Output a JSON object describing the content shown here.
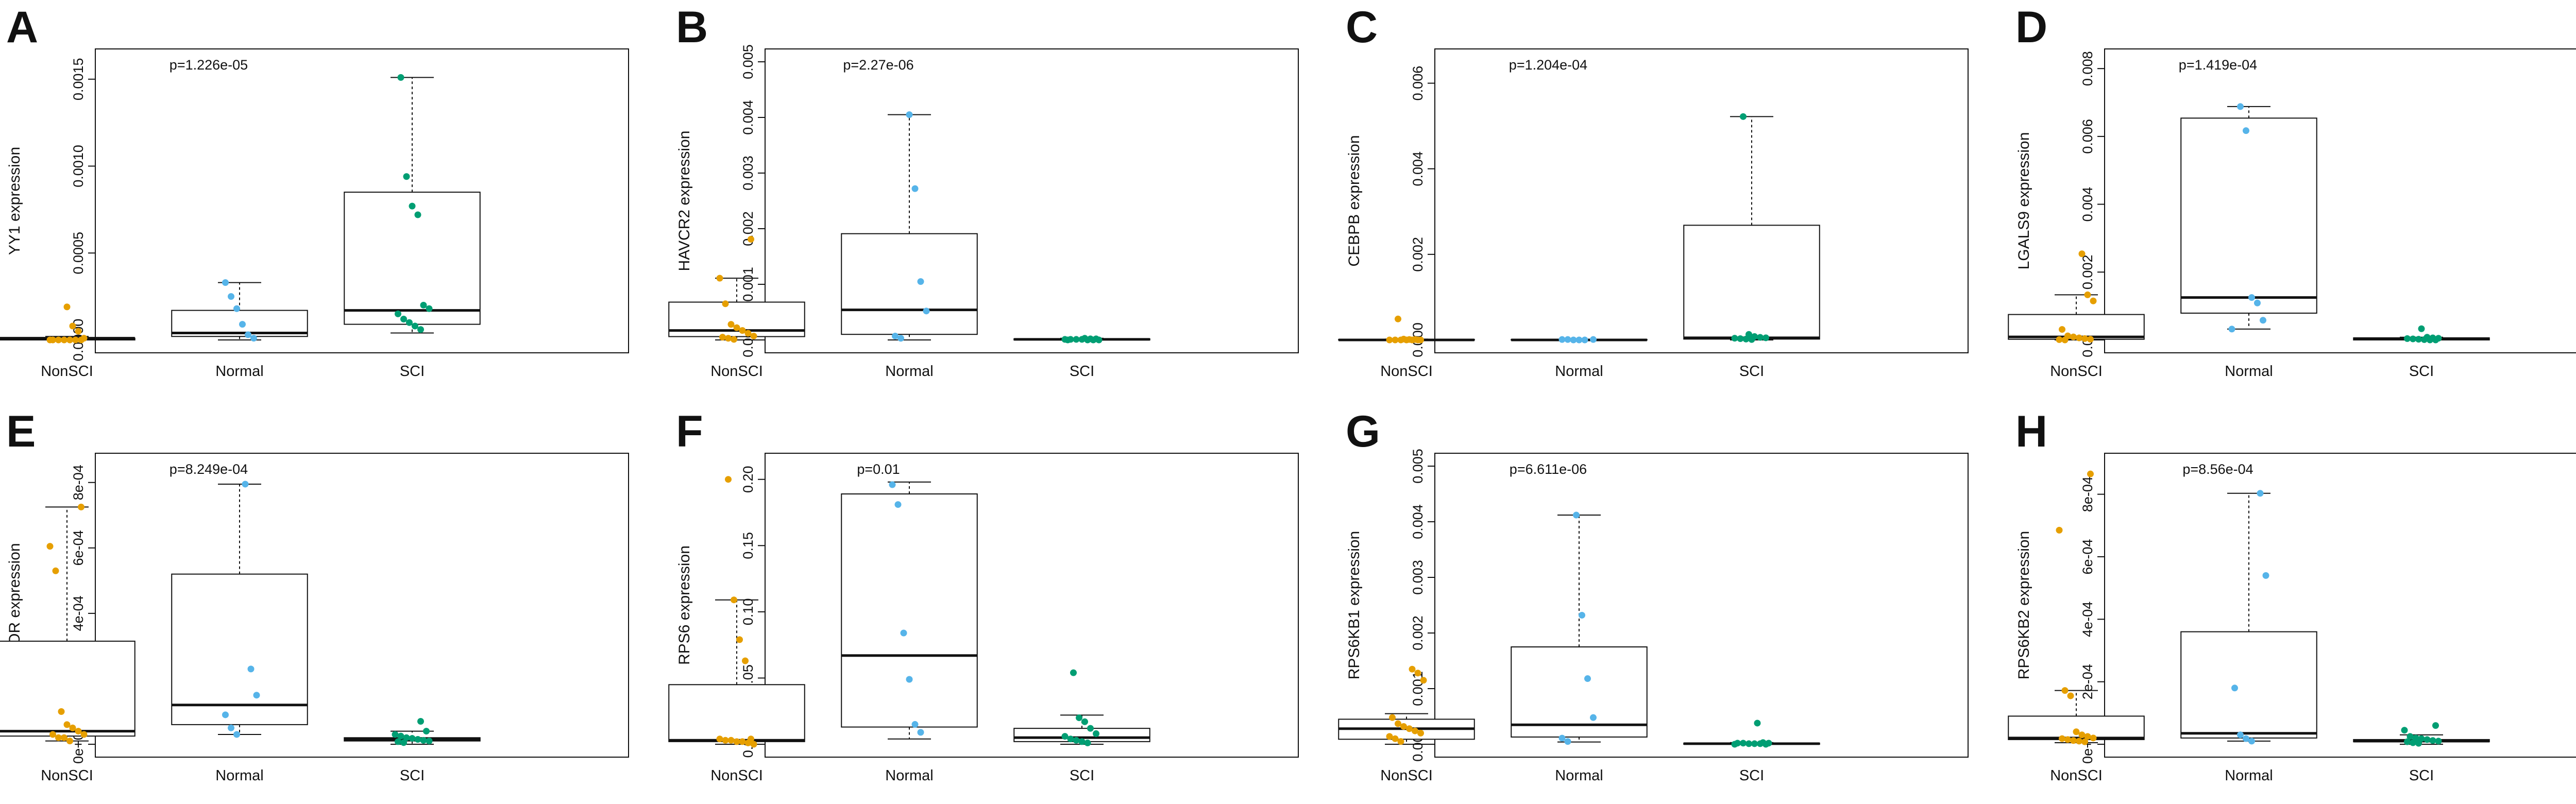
{
  "colors": {
    "NonSCI": "#E69F00",
    "Normal": "#56B4E9",
    "SCI": "#009E73",
    "axis": "#111111"
  },
  "chart_data": [
    {
      "letter": "A",
      "type": "boxplot",
      "ylabel": "YY1 expression",
      "pvalue": "p=1.226e-05",
      "ylim": [
        0,
        0.0016
      ],
      "ticks": [
        0,
        0.0005,
        0.001,
        0.0015
      ],
      "tick_labels": [
        "0.0000",
        "0.0005",
        "0.0010",
        "0.0015"
      ],
      "categories": [
        "NonSCI",
        "Normal",
        "SCI"
      ],
      "boxes": [
        {
          "q1": 0.0,
          "median": 1e-05,
          "q3": 1e-05,
          "wlow": 0.0,
          "whigh": 2e-05
        },
        {
          "q1": 2e-05,
          "median": 4e-05,
          "q3": 0.00017,
          "wlow": 0.0,
          "whigh": 0.00033
        },
        {
          "q1": 9e-05,
          "median": 0.00017,
          "q3": 0.00085,
          "wlow": 4e-05,
          "whigh": 0.00151
        }
      ],
      "points": [
        [
          0.0,
          0.0,
          0.0,
          0.0,
          0.0,
          0.0,
          0.0,
          1e-05,
          5e-05,
          8e-05,
          0.00019
        ],
        [
          1e-05,
          3e-05,
          9e-05,
          0.00018,
          0.00025,
          0.00033
        ],
        [
          6e-05,
          8e-05,
          0.0001,
          0.00012,
          0.00015,
          0.00018,
          0.0002,
          0.00072,
          0.00077,
          0.00094,
          0.00151
        ]
      ]
    },
    {
      "letter": "B",
      "type": "boxplot",
      "ylabel": "HAVCR2 expression",
      "pvalue": "p=2.27e-06",
      "ylim": [
        0,
        0.005
      ],
      "ticks": [
        0,
        0.001,
        0.002,
        0.003,
        0.004,
        0.005
      ],
      "tick_labels": [
        "0.000",
        "0.001",
        "0.002",
        "0.003",
        "0.004",
        "0.005"
      ],
      "categories": [
        "NonSCI",
        "Normal",
        "SCI"
      ],
      "boxes": [
        {
          "q1": 6e-05,
          "median": 0.00017,
          "q3": 0.00068,
          "wlow": 0.0,
          "whigh": 0.00111
        },
        {
          "q1": 0.0001,
          "median": 0.00054,
          "q3": 0.00191,
          "wlow": 0.0,
          "whigh": 0.00405
        },
        {
          "q1": 0.0,
          "median": 1e-05,
          "q3": 2e-05,
          "wlow": 0.0,
          "whigh": 3e-05
        }
      ],
      "points": [
        [
          1e-05,
          3e-05,
          5e-05,
          7e-05,
          0.00012,
          0.00017,
          0.00022,
          0.00028,
          0.00065,
          0.00111,
          0.00181
        ],
        [
          3e-05,
          7e-05,
          0.00052,
          0.00105,
          0.00272,
          0.00405
        ],
        [
          0.0,
          0.0,
          0.0,
          0.0,
          1e-05,
          1e-05,
          1e-05,
          1e-05,
          2e-05,
          2e-05,
          3e-05
        ]
      ]
    },
    {
      "letter": "C",
      "type": "boxplot",
      "ylabel": "CEBPB expression",
      "pvalue": "p=1.204e-04",
      "ylim": [
        0,
        0.0065
      ],
      "ticks": [
        0,
        0.002,
        0.004,
        0.006
      ],
      "tick_labels": [
        "0.000",
        "0.002",
        "0.004",
        "0.006"
      ],
      "categories": [
        "NonSCI",
        "Normal",
        "SCI"
      ],
      "boxes": [
        {
          "q1": 0.0,
          "median": 0.0,
          "q3": 1e-05,
          "wlow": 0.0,
          "whigh": 2e-05
        },
        {
          "q1": 0.0,
          "median": 0.0,
          "q3": 1e-05,
          "wlow": 0.0,
          "whigh": 1e-05
        },
        {
          "q1": 2e-05,
          "median": 5e-05,
          "q3": 0.00268,
          "wlow": 0.0,
          "whigh": 0.00522
        }
      ],
      "points": [
        [
          0.0,
          0.0,
          0.0,
          0.0,
          0.0,
          0.0,
          0.0,
          1e-05,
          1e-05,
          2e-05,
          0.00049
        ],
        [
          0.0,
          0.0,
          0.0,
          1e-05,
          1e-05,
          1e-05
        ],
        [
          1e-05,
          2e-05,
          3e-05,
          4e-05,
          5e-05,
          6e-05,
          8e-05,
          0.00013,
          0.00522
        ]
      ]
    },
    {
      "letter": "D",
      "type": "boxplot",
      "ylabel": "LGALS9 expression",
      "pvalue": "p=1.419e-04",
      "ylim": [
        0,
        0.0082
      ],
      "ticks": [
        0,
        0.002,
        0.004,
        0.006,
        0.008
      ],
      "tick_labels": [
        "0.000",
        "0.002",
        "0.004",
        "0.006",
        "0.008"
      ],
      "categories": [
        "NonSCI",
        "Normal",
        "SCI"
      ],
      "boxes": [
        {
          "q1": 2e-05,
          "median": 9e-05,
          "q3": 0.00075,
          "wlow": 0.0,
          "whigh": 0.00133
        },
        {
          "q1": 0.00079,
          "median": 0.00125,
          "q3": 0.00654,
          "wlow": 0.00032,
          "whigh": 0.00688
        },
        {
          "q1": 0.0,
          "median": 4e-05,
          "q3": 6e-05,
          "wlow": 0.0,
          "whigh": 8e-05
        }
      ],
      "points": [
        [
          0.0,
          1e-05,
          2e-05,
          4e-05,
          6e-05,
          9e-05,
          0.00012,
          0.00031,
          0.00115,
          0.00133,
          0.00254
        ],
        [
          0.00032,
          0.00058,
          0.00109,
          0.00125,
          0.00617,
          0.00688
        ],
        [
          0.0,
          0.0,
          1e-05,
          2e-05,
          3e-05,
          4e-05,
          5e-05,
          6e-05,
          8e-05,
          0.00033
        ]
      ]
    },
    {
      "letter": "E",
      "type": "boxplot",
      "ylabel": "MTOR expression",
      "pvalue": "p=8.249e-04",
      "ylim": [
        0,
        0.00085
      ],
      "ticks": [
        0,
        0.0002,
        0.0004,
        0.0006,
        0.0008
      ],
      "tick_labels": [
        "0e+00",
        "2e-04",
        "4e-04",
        "6e-04",
        "8e-04"
      ],
      "categories": [
        "NonSCI",
        "Normal",
        "SCI"
      ],
      "boxes": [
        {
          "q1": 2.5e-05,
          "median": 4e-05,
          "q3": 0.000315,
          "wlow": 1e-05,
          "whigh": 0.000725
        },
        {
          "q1": 6e-05,
          "median": 0.00012,
          "q3": 0.00052,
          "wlow": 3e-05,
          "whigh": 0.000795
        },
        {
          "q1": 1e-05,
          "median": 1.5e-05,
          "q3": 2e-05,
          "wlow": 0.0,
          "whigh": 4e-05
        }
      ],
      "points": [
        [
          1e-05,
          2e-05,
          2e-05,
          3e-05,
          3e-05,
          4e-05,
          5e-05,
          6e-05,
          0.0001,
          0.00053,
          0.000605,
          0.000725
        ],
        [
          3e-05,
          5e-05,
          9e-05,
          0.00015,
          0.00023,
          0.000795
        ],
        [
          5e-06,
          8e-06,
          1e-05,
          1.2e-05,
          1.5e-05,
          1.8e-05,
          2e-05,
          2.5e-05,
          3e-05,
          4e-05,
          7e-05
        ]
      ]
    },
    {
      "letter": "F",
      "type": "boxplot",
      "ylabel": "RPS6 expression",
      "pvalue": "p=0.01",
      "ylim": [
        0,
        0.21
      ],
      "ticks": [
        0,
        0.05,
        0.1,
        0.15,
        0.2
      ],
      "tick_labels": [
        "0.00",
        "0.05",
        "0.10",
        "0.15",
        "0.20"
      ],
      "categories": [
        "NonSCI",
        "Normal",
        "SCI"
      ],
      "boxes": [
        {
          "q1": 0.002,
          "median": 0.003,
          "q3": 0.045,
          "wlow": 0.0,
          "whigh": 0.109
        },
        {
          "q1": 0.013,
          "median": 0.067,
          "q3": 0.189,
          "wlow": 0.004,
          "whigh": 0.198
        },
        {
          "q1": 0.002,
          "median": 0.005,
          "q3": 0.012,
          "wlow": 0.0,
          "whigh": 0.022
        }
      ],
      "points": [
        [
          0.0,
          0.001,
          0.002,
          0.002,
          0.003,
          0.003,
          0.004,
          0.004,
          0.063,
          0.079,
          0.109,
          0.2
        ],
        [
          0.009,
          0.015,
          0.049,
          0.084,
          0.181,
          0.196
        ],
        [
          0.001,
          0.002,
          0.003,
          0.004,
          0.006,
          0.008,
          0.012,
          0.017,
          0.02,
          0.054
        ]
      ]
    },
    {
      "letter": "G",
      "type": "boxplot",
      "ylabel": "RPS6KB1 expression",
      "pvalue": "p=6.611e-06",
      "ylim": [
        0,
        0.005
      ],
      "ticks": [
        0,
        0.001,
        0.002,
        0.003,
        0.004,
        0.005
      ],
      "tick_labels": [
        "0.000",
        "0.001",
        "0.002",
        "0.003",
        "0.004",
        "0.005"
      ],
      "categories": [
        "NonSCI",
        "Normal",
        "SCI"
      ],
      "boxes": [
        {
          "q1": 9e-05,
          "median": 0.00028,
          "q3": 0.00045,
          "wlow": 0.0,
          "whigh": 0.00055
        },
        {
          "q1": 0.00013,
          "median": 0.00035,
          "q3": 0.00175,
          "wlow": 4e-05,
          "whigh": 0.00412
        },
        {
          "q1": 0.0,
          "median": 1e-05,
          "q3": 2e-05,
          "wlow": 0.0,
          "whigh": 3e-05
        }
      ],
      "points": [
        [
          5e-05,
          0.0001,
          0.00014,
          0.0002,
          0.00024,
          0.00028,
          0.00032,
          0.00037,
          0.00048,
          0.00115,
          0.00128,
          0.00135
        ],
        [
          5e-05,
          0.00011,
          0.00048,
          0.00118,
          0.00232,
          0.00412
        ],
        [
          0.0,
          0.0,
          1e-05,
          1e-05,
          1e-05,
          2e-05,
          2e-05,
          2e-05,
          3e-05,
          0.00038
        ]
      ]
    },
    {
      "letter": "H",
      "type": "boxplot",
      "ylabel": "RPS6KB2 expression",
      "pvalue": "p=8.56e-04",
      "ylim": [
        0,
        0.00089
      ],
      "ticks": [
        0,
        0.0002,
        0.0004,
        0.0006,
        0.0008
      ],
      "tick_labels": [
        "0e+00",
        "2e-04",
        "4e-04",
        "6e-04",
        "8e-04"
      ],
      "categories": [
        "NonSCI",
        "Normal",
        "SCI"
      ],
      "boxes": [
        {
          "q1": 1.5e-05,
          "median": 2e-05,
          "q3": 9e-05,
          "wlow": 5e-06,
          "whigh": 0.000172
        },
        {
          "q1": 2e-05,
          "median": 3.5e-05,
          "q3": 0.00036,
          "wlow": 1e-05,
          "whigh": 0.000803
        },
        {
          "q1": 8e-06,
          "median": 1e-05,
          "q3": 1.5e-05,
          "wlow": 0.0,
          "whigh": 3e-05
        }
      ],
      "points": [
        [
          8e-06,
          1e-05,
          1.2e-05,
          1.5e-05,
          1.8e-05,
          2e-05,
          2.5e-05,
          3e-05,
          4e-05,
          0.000155,
          0.000172,
          0.000685,
          0.000865
        ],
        [
          1e-05,
          1.8e-05,
          3e-05,
          0.00018,
          0.00054,
          0.000803
        ],
        [
          3e-06,
          5e-06,
          8e-06,
          1e-05,
          1.2e-05,
          1.5e-05,
          1.8e-05,
          2e-05,
          2.5e-05,
          4.5e-05,
          6e-05
        ]
      ]
    }
  ]
}
